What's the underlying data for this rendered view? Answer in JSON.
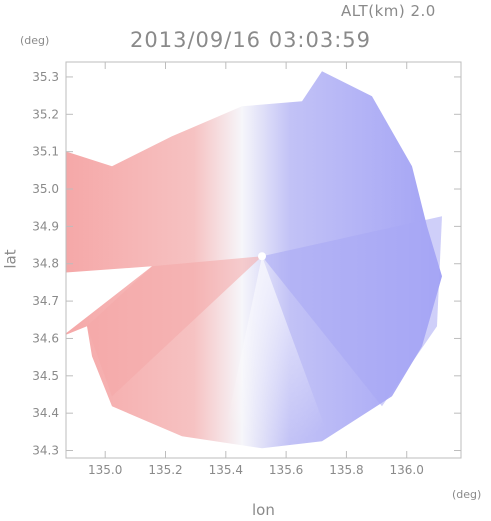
{
  "header": {
    "altitude": "ALT(km) 2.0",
    "timestamp": "2013/09/16 03:03:59"
  },
  "chart_data": {
    "type": "heatmap",
    "title": "2013/09/16 03:03:59",
    "subtitle": "ALT(km) 2.0",
    "xlabel": "lon",
    "ylabel": "lat",
    "x_unit": "(deg)",
    "y_unit": "(deg)",
    "xlim": [
      134.87,
      136.18
    ],
    "ylim": [
      34.28,
      35.34
    ],
    "x_ticks": [
      135.0,
      135.2,
      135.4,
      135.6,
      135.8,
      136.0
    ],
    "x_tick_labels": [
      "135.0",
      "135.2",
      "135.4",
      "135.6",
      "135.8",
      "136.0"
    ],
    "y_ticks": [
      34.3,
      34.4,
      34.5,
      34.6,
      34.7,
      34.8,
      34.9,
      35.0,
      35.1,
      35.2,
      35.3
    ],
    "y_tick_labels": [
      "34.3",
      "34.4",
      "34.5",
      "34.6",
      "34.7",
      "34.8",
      "34.9",
      "35.0",
      "35.1",
      "35.2",
      "35.3"
    ],
    "radar_center": {
      "lon": 135.52,
      "lat": 34.82
    },
    "colors": {
      "positive": "#f4a0a0",
      "negative": "#a0a0f4",
      "zero": "#f6f6fa",
      "axis": "#bdbdbd",
      "text": "#8a8a8a"
    },
    "grid": false
  }
}
